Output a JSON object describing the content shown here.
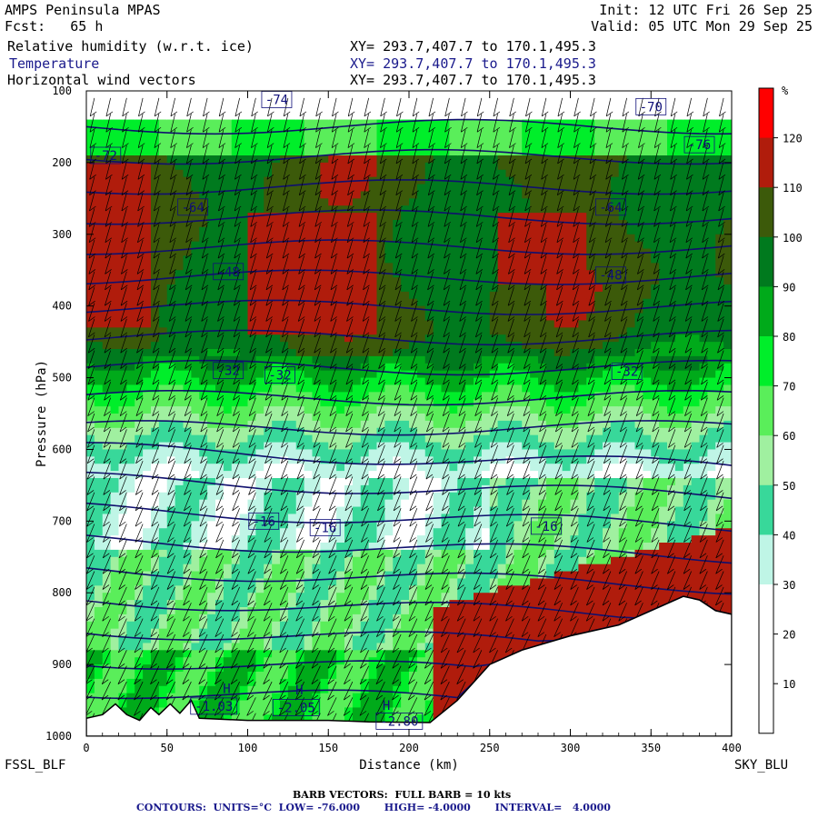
{
  "header": {
    "model": "AMPS Peninsula MPAS",
    "fcst": "Fcst:   65 h",
    "init": "Init: 12 UTC Fri 26 Sep 25",
    "valid": "Valid: 05 UTC Mon 29 Sep 25",
    "fields": [
      {
        "label": "Relative humidity (w.r.t. ice)",
        "xy": "XY= 293.7,407.7 to 170.1,495.3",
        "color": "#000000"
      },
      {
        "label": "Temperature",
        "xy": "XY= 293.7,407.7 to 170.1,495.3",
        "color": "#1a1a8c"
      },
      {
        "label": "Horizontal wind vectors",
        "xy": "XY= 293.7,407.7 to 170.1,495.3",
        "color": "#000000"
      }
    ]
  },
  "endpoints": {
    "left": "FSSL_BLF",
    "right": "SKY_BLU"
  },
  "footer": {
    "barb": "BARB VECTORS:  FULL BARB = 10 kts",
    "contours": "CONTOURS:  UNITS=°C  LOW= -76.000       HIGH= -4.0000       INTERVAL=   4.0000"
  },
  "chart_data": {
    "type": "heatmap",
    "xlabel": "Distance (km)",
    "ylabel": "Pressure (hPa)",
    "xlim": [
      0,
      400
    ],
    "ylim": [
      1000,
      100
    ],
    "xticks": [
      0,
      50,
      100,
      150,
      200,
      250,
      300,
      350,
      400
    ],
    "yticks": [
      100,
      200,
      300,
      400,
      500,
      600,
      700,
      800,
      900,
      1000
    ],
    "colorbar": {
      "unit": "%",
      "levels": [
        120,
        110,
        100,
        90,
        80,
        70,
        60,
        50,
        40,
        30,
        20,
        10
      ],
      "colors": [
        "#ff0000",
        "#b01c0c",
        "#3c5a0a",
        "#007a1e",
        "#00aa1a",
        "#00ee2a",
        "#5aee5a",
        "#a0f0a0",
        "#38d89a",
        "#bff5e6",
        "#ffffff",
        "#ffffff",
        "#ffffff"
      ]
    },
    "temperature_labels": [
      {
        "text": "-74",
        "x": 118,
        "p": 112
      },
      {
        "text": "-70",
        "x": 350,
        "p": 122
      },
      {
        "text": "-76",
        "x": 380,
        "p": 175
      },
      {
        "text": "-72",
        "x": 12,
        "p": 190
      },
      {
        "text": "-64",
        "x": 66,
        "p": 262
      },
      {
        "text": "-64",
        "x": 325,
        "p": 262
      },
      {
        "text": "-48",
        "x": 88,
        "p": 352
      },
      {
        "text": "-48",
        "x": 325,
        "p": 357
      },
      {
        "text": "-32",
        "x": 88,
        "p": 490
      },
      {
        "text": "-32",
        "x": 120,
        "p": 496
      },
      {
        "text": "-32",
        "x": 335,
        "p": 491
      },
      {
        "text": "-16",
        "x": 110,
        "p": 700
      },
      {
        "text": "-16",
        "x": 148,
        "p": 709
      },
      {
        "text": "-16",
        "x": 285,
        "p": 707
      },
      {
        "text": "-1.03",
        "x": 79,
        "p": 958
      },
      {
        "text": "-2.05",
        "x": 130,
        "p": 960
      },
      {
        "text": "-2.80",
        "x": 194,
        "p": 979
      }
    ],
    "high_markers": [
      {
        "text": "H",
        "x": 87,
        "p": 940
      },
      {
        "text": "H",
        "x": 132,
        "p": 942
      },
      {
        "text": "H",
        "x": 186,
        "p": 963
      }
    ],
    "terrain": [
      [
        0,
        975
      ],
      [
        10,
        970
      ],
      [
        18,
        955
      ],
      [
        25,
        970
      ],
      [
        33,
        978
      ],
      [
        40,
        960
      ],
      [
        45,
        970
      ],
      [
        52,
        955
      ],
      [
        58,
        968
      ],
      [
        65,
        950
      ],
      [
        70,
        975
      ],
      [
        100,
        978
      ],
      [
        150,
        978
      ],
      [
        175,
        980
      ],
      [
        213,
        981
      ],
      [
        230,
        950
      ],
      [
        250,
        900
      ],
      [
        270,
        880
      ],
      [
        300,
        860
      ],
      [
        330,
        845
      ],
      [
        350,
        825
      ],
      [
        370,
        805
      ],
      [
        380,
        810
      ],
      [
        390,
        825
      ],
      [
        400,
        830
      ]
    ]
  }
}
